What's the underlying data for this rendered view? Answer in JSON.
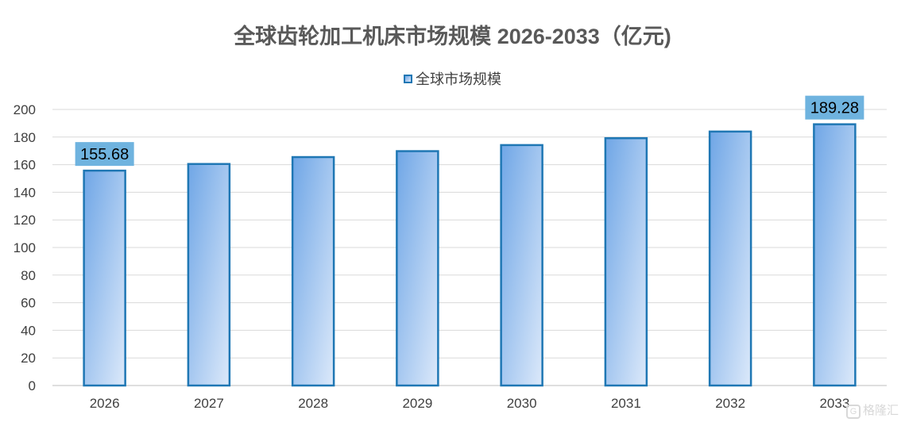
{
  "chart_data": {
    "type": "bar",
    "title": "全球齿轮加工机床市场规模 2026-2033（亿元)",
    "categories": [
      "2026",
      "2027",
      "2028",
      "2029",
      "2030",
      "2031",
      "2032",
      "2033"
    ],
    "series": [
      {
        "name": "全球市场规模",
        "values": [
          155.68,
          160.5,
          165.5,
          169.8,
          174.2,
          179.2,
          184.0,
          189.28
        ]
      }
    ],
    "data_labels": [
      {
        "index": 0,
        "text": "155.68"
      },
      {
        "index": 7,
        "text": "189.28"
      }
    ],
    "ylim": [
      0,
      200
    ],
    "yticks": [
      0,
      20,
      40,
      60,
      80,
      100,
      120,
      140,
      160,
      180,
      200
    ],
    "xlabel": "",
    "ylabel": "",
    "grid": true,
    "legend_position": "top-center",
    "colors": {
      "bar_fill_start": "#6fa6e6",
      "bar_fill_end": "#dce9fa",
      "bar_stroke": "#1f77b4",
      "label_bg": "#6fb3df",
      "grid": "#d9d9d9"
    }
  },
  "watermark": {
    "text": "格隆汇"
  }
}
